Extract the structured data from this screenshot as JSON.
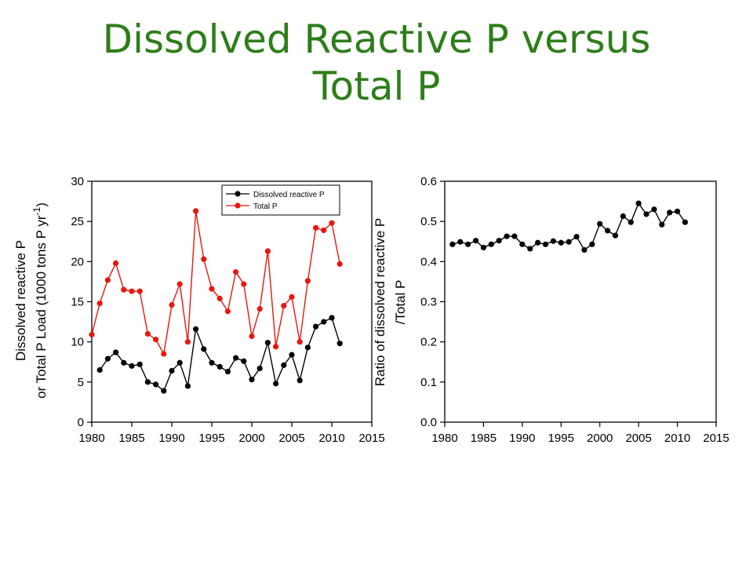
{
  "slide": {
    "title_line1": "Dissolved Reactive P versus",
    "title_line2": "Total P",
    "title_color": "#2e7d1a"
  },
  "chart_data": [
    {
      "type": "line",
      "xlabel": "",
      "ylabel_line1": "Dissolved reactive P",
      "ylabel_line2": "or Total P Load (1000 tons P yr",
      "ylabel_sup": "-1",
      "ylabel_close": ")",
      "xlim": [
        1980,
        2015
      ],
      "ylim": [
        0,
        30
      ],
      "xticks": [
        "1980",
        "1985",
        "1990",
        "1995",
        "2000",
        "2005",
        "2010",
        "2015"
      ],
      "yticks": [
        "0",
        "5",
        "10",
        "15",
        "20",
        "25",
        "30"
      ],
      "legend_placement": "top-right",
      "x": [
        1980,
        1981,
        1982,
        1983,
        1984,
        1985,
        1986,
        1987,
        1988,
        1989,
        1990,
        1991,
        1992,
        1993,
        1994,
        1995,
        1996,
        1997,
        1998,
        1999,
        2000,
        2001,
        2002,
        2003,
        2004,
        2005,
        2006,
        2007,
        2008,
        2009,
        2010,
        2011
      ],
      "series": [
        {
          "name": "Dissolved reactive  P",
          "color": "#000000",
          "x": [
            1981,
            1982,
            1983,
            1984,
            1985,
            1986,
            1987,
            1988,
            1989,
            1990,
            1991,
            1992,
            1993,
            1994,
            1995,
            1996,
            1997,
            1998,
            1999,
            2000,
            2001,
            2002,
            2003,
            2004,
            2005,
            2006,
            2007,
            2008,
            2009,
            2010,
            2011
          ],
          "values": [
            6.5,
            7.9,
            8.7,
            7.4,
            7.0,
            7.2,
            5.0,
            4.7,
            3.9,
            6.4,
            7.4,
            4.5,
            11.6,
            9.1,
            7.4,
            6.9,
            6.3,
            8.0,
            7.6,
            5.3,
            6.7,
            9.9,
            4.8,
            7.1,
            8.4,
            5.2,
            9.3,
            11.9,
            12.5,
            13.0,
            9.8
          ]
        },
        {
          "name": "Total P",
          "color": "#e8170f",
          "x": [
            1980,
            1981,
            1982,
            1983,
            1984,
            1985,
            1986,
            1987,
            1988,
            1989,
            1990,
            1991,
            1992,
            1993,
            1994,
            1995,
            1996,
            1997,
            1998,
            1999,
            2000,
            2001,
            2002,
            2003,
            2004,
            2005,
            2006,
            2007,
            2008,
            2009,
            2010,
            2011
          ],
          "values": [
            10.9,
            14.8,
            17.7,
            19.8,
            16.5,
            16.3,
            16.3,
            11.0,
            10.3,
            8.5,
            14.6,
            17.2,
            10.0,
            26.3,
            20.3,
            16.6,
            15.4,
            13.8,
            18.7,
            17.2,
            10.7,
            14.1,
            21.3,
            9.4,
            14.5,
            15.6,
            10.0,
            17.6,
            24.2,
            23.9,
            24.8,
            19.7
          ]
        }
      ]
    },
    {
      "type": "line",
      "xlabel": "",
      "ylabel_line1": "Ratio of dissolved reactive P",
      "ylabel_line2": "/Total P",
      "xlim": [
        1980,
        2015
      ],
      "ylim": [
        0,
        0.6
      ],
      "xticks": [
        "1980",
        "1985",
        "1990",
        "1995",
        "2000",
        "2005",
        "2010",
        "2015"
      ],
      "yticks": [
        "0.0",
        "0.1",
        "0.2",
        "0.3",
        "0.4",
        "0.5",
        "0.6"
      ],
      "series": [
        {
          "color": "#000000",
          "x": [
            1981,
            1982,
            1983,
            1984,
            1985,
            1986,
            1987,
            1988,
            1989,
            1990,
            1991,
            1992,
            1993,
            1994,
            1995,
            1996,
            1997,
            1998,
            1999,
            2000,
            2001,
            2002,
            2003,
            2004,
            2005,
            2006,
            2007,
            2008,
            2009,
            2010,
            2011
          ],
          "values": [
            0.443,
            0.449,
            0.443,
            0.452,
            0.435,
            0.443,
            0.452,
            0.463,
            0.463,
            0.443,
            0.432,
            0.447,
            0.443,
            0.451,
            0.447,
            0.449,
            0.462,
            0.429,
            0.443,
            0.494,
            0.477,
            0.465,
            0.513,
            0.498,
            0.545,
            0.518,
            0.53,
            0.492,
            0.522,
            0.525,
            0.498
          ]
        }
      ]
    }
  ]
}
